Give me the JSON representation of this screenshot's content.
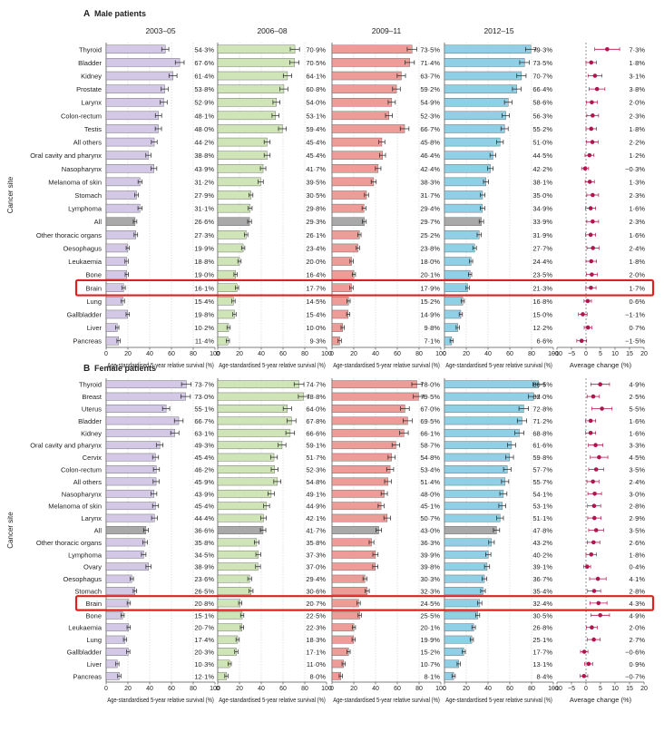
{
  "chart_data": [
    {
      "type": "bar",
      "panel_label": "A",
      "title": "Male patients",
      "ylabel": "Cancer site",
      "periods": [
        "2003–05",
        "2006–08",
        "2009–11",
        "2012–15"
      ],
      "xlabel": "Age-standardised 5-year relative survival (%)",
      "xlim": [
        0,
        100
      ],
      "xticks": [
        "0",
        "20",
        "40",
        "60",
        "80",
        "100"
      ],
      "change_xlabel": "Average change (%)",
      "change_xlim": [
        -10,
        20
      ],
      "change_xticks": [
        "−10",
        "−5",
        "0",
        "5",
        "10",
        "15",
        "20"
      ],
      "highlighted_category": "Brain",
      "categories": [
        "Thyroid",
        "Bladder",
        "Kidney",
        "Prostate",
        "Larynx",
        "Colon-rectum",
        "Testis",
        "All others",
        "Oral cavity and pharynx",
        "Nasopharynx",
        "Melanoma of skin",
        "Stomach",
        "Lymphoma",
        "All",
        "Other thoracic organs",
        "Oesophagus",
        "Leukaemia",
        "Bone",
        "Brain",
        "Lung",
        "Gallbladder",
        "Liver",
        "Pancreas"
      ],
      "series": [
        {
          "values": [
            54.3,
            67.6,
            61.4,
            53.8,
            52.9,
            48.1,
            48.0,
            44.2,
            38.8,
            43.9,
            31.2,
            27.9,
            31.1,
            26.6,
            27.3,
            19.9,
            18.8,
            19.0,
            16.1,
            15.4,
            19.8,
            10.2,
            11.4
          ],
          "labels": [
            "54·3%",
            "67·6%",
            "61·4%",
            "53·8%",
            "52·9%",
            "48·1%",
            "48·0%",
            "44·2%",
            "38·8%",
            "43·9%",
            "31·2%",
            "27·9%",
            "31·1%",
            "26·6%",
            "27·3%",
            "19·9%",
            "18·8%",
            "19·0%",
            "16·1%",
            "15·4%",
            "19·8%",
            "10·2%",
            "11·4%"
          ]
        },
        {
          "values": [
            70.9,
            70.5,
            64.1,
            60.8,
            54.0,
            53.1,
            59.4,
            45.4,
            45.4,
            41.7,
            39.5,
            30.5,
            29.8,
            29.3,
            26.1,
            23.4,
            20.0,
            16.4,
            17.7,
            14.5,
            15.4,
            10.0,
            9.3
          ],
          "labels": [
            "70·9%",
            "70·5%",
            "64·1%",
            "60·8%",
            "54·0%",
            "53·1%",
            "59·4%",
            "45·4%",
            "45·4%",
            "41·7%",
            "39·5%",
            "30·5%",
            "29·8%",
            "29·3%",
            "26·1%",
            "23·4%",
            "20·0%",
            "16·4%",
            "17·7%",
            "14·5%",
            "15·4%",
            "10·0%",
            "9·3%"
          ]
        },
        {
          "values": [
            73.5,
            71.4,
            63.7,
            59.2,
            54.9,
            52.3,
            66.7,
            45.8,
            46.4,
            42.4,
            38.3,
            31.7,
            29.4,
            29.7,
            25.2,
            23.8,
            18.0,
            20.1,
            17.9,
            15.2,
            14.9,
            9.8,
            7.1
          ],
          "labels": [
            "73·5%",
            "71·4%",
            "63·7%",
            "59·2%",
            "54·9%",
            "52·3%",
            "66·7%",
            "45·8%",
            "46·4%",
            "42·4%",
            "38·3%",
            "31·7%",
            "29·4%",
            "29·7%",
            "25·2%",
            "23·8%",
            "18·0%",
            "20·1%",
            "17·9%",
            "15·2%",
            "14·9%",
            "9·8%",
            "7·1%"
          ]
        },
        {
          "values": [
            79.3,
            73.5,
            70.7,
            66.4,
            58.6,
            56.3,
            55.2,
            51.0,
            44.5,
            42.2,
            38.1,
            35.0,
            34.9,
            33.9,
            31.9,
            27.7,
            24.4,
            23.5,
            21.3,
            16.8,
            15.0,
            12.2,
            6.6
          ],
          "labels": [
            "79·3%",
            "73·5%",
            "70·7%",
            "66·4%",
            "58·6%",
            "56·3%",
            "55·2%",
            "51·0%",
            "44·5%",
            "42·2%",
            "38·1%",
            "35·0%",
            "34·9%",
            "33·9%",
            "31·9%",
            "27·7%",
            "24·4%",
            "23·5%",
            "21·3%",
            "16·8%",
            "15·0%",
            "12·2%",
            "6·6%"
          ]
        }
      ],
      "change": {
        "values": [
          7.3,
          1.8,
          3.1,
          3.8,
          2.0,
          2.3,
          1.8,
          2.2,
          1.2,
          -0.3,
          1.3,
          2.3,
          1.6,
          2.3,
          1.6,
          2.4,
          1.8,
          2.0,
          1.7,
          0.6,
          -1.1,
          0.7,
          -1.5
        ],
        "labels": [
          "7·3%",
          "1·8%",
          "3·1%",
          "3·8%",
          "2·0%",
          "2·3%",
          "1·8%",
          "2·2%",
          "1·2%",
          "−0·3%",
          "1·3%",
          "2·3%",
          "1·6%",
          "2·3%",
          "1·6%",
          "2·4%",
          "1·8%",
          "2·0%",
          "1·7%",
          "0·6%",
          "−1·1%",
          "0·7%",
          "−1·5%"
        ]
      }
    },
    {
      "type": "bar",
      "panel_label": "B",
      "title": "Female patients",
      "ylabel": "Cancer site",
      "periods": [
        "2003–05",
        "2006–08",
        "2009–11",
        "2012–15"
      ],
      "xlabel": "Age-standardised 5-year relative survival (%)",
      "xlim": [
        0,
        100
      ],
      "xticks": [
        "0",
        "20",
        "40",
        "60",
        "80",
        "100"
      ],
      "change_xlabel": "Average change (%)",
      "change_xlim": [
        -10,
        20
      ],
      "change_xticks": [
        "−10",
        "−5",
        "0",
        "5",
        "10",
        "15",
        "20"
      ],
      "highlighted_category": "Brain",
      "categories": [
        "Thyroid",
        "Breast",
        "Uterus",
        "Bladder",
        "Kidney",
        "Oral cavity and pharynx",
        "Cervix",
        "Colon-rectum",
        "All others",
        "Nasopharynx",
        "Melanoma of skin",
        "Larynx",
        "All",
        "Other thoracic organs",
        "Lymphoma",
        "Ovary",
        "Oesophagus",
        "Stomach",
        "Brain",
        "Bone",
        "Leukaemia",
        "Lung",
        "Gallbladder",
        "Liver",
        "Pancreas"
      ],
      "series": [
        {
          "values": [
            73.7,
            73.0,
            55.1,
            66.7,
            63.1,
            49.3,
            45.4,
            46.2,
            45.9,
            43.9,
            45.4,
            44.4,
            36.6,
            35.8,
            34.5,
            38.9,
            23.6,
            26.5,
            20.8,
            15.1,
            20.7,
            17.4,
            20.3,
            10.3,
            12.1
          ],
          "labels": [
            "73·7%",
            "73·0%",
            "55·1%",
            "66·7%",
            "63·1%",
            "49·3%",
            "45·4%",
            "46·2%",
            "45·9%",
            "43·9%",
            "45·4%",
            "44·4%",
            "36·6%",
            "35·8%",
            "34·5%",
            "38·9%",
            "23·6%",
            "26·5%",
            "20·8%",
            "15·1%",
            "20·7%",
            "17·4%",
            "20·3%",
            "10·3%",
            "12·1%"
          ]
        },
        {
          "values": [
            74.7,
            78.8,
            64.0,
            67.8,
            66.6,
            59.1,
            51.7,
            52.3,
            54.8,
            49.1,
            44.9,
            42.1,
            41.7,
            35.8,
            37.3,
            37.0,
            29.4,
            30.6,
            20.7,
            22.5,
            22.3,
            18.3,
            17.1,
            11.0,
            8.0
          ],
          "labels": [
            "74·7%",
            "78·8%",
            "64·0%",
            "67·8%",
            "66·6%",
            "59·1%",
            "51·7%",
            "52·3%",
            "54·8%",
            "49·1%",
            "44·9%",
            "42·1%",
            "41·7%",
            "35·8%",
            "37·3%",
            "37·0%",
            "29·4%",
            "30·6%",
            "20·7%",
            "22·5%",
            "22·3%",
            "18·3%",
            "17·1%",
            "11·0%",
            "8·0%"
          ]
        },
        {
          "values": [
            78.0,
            79.5,
            67.0,
            69.5,
            66.1,
            58.7,
            54.8,
            53.4,
            51.4,
            48.0,
            45.1,
            50.7,
            43.0,
            36.3,
            39.9,
            39.8,
            30.3,
            32.3,
            24.5,
            25.5,
            20.1,
            19.9,
            15.2,
            10.7,
            8.1
          ],
          "labels": [
            "78·0%",
            "79·5%",
            "67·0%",
            "69·5%",
            "66·1%",
            "58·7%",
            "54·8%",
            "53·4%",
            "51·4%",
            "48·0%",
            "45·1%",
            "50·7%",
            "43·0%",
            "36·3%",
            "39·9%",
            "39·8%",
            "30·3%",
            "32·3%",
            "24·5%",
            "25·5%",
            "20·1%",
            "19·9%",
            "15·2%",
            "10·7%",
            "8·1%"
          ]
        },
        {
          "values": [
            86.5,
            82.0,
            72.8,
            71.2,
            68.8,
            61.6,
            59.8,
            57.7,
            55.7,
            54.1,
            53.1,
            51.1,
            47.8,
            43.2,
            40.2,
            39.1,
            36.7,
            35.4,
            32.4,
            30.5,
            26.8,
            25.1,
            17.7,
            13.1,
            8.4
          ],
          "labels": [
            "86·5%",
            "82·0%",
            "72·8%",
            "71·2%",
            "68·8%",
            "61·6%",
            "59·8%",
            "57·7%",
            "55·7%",
            "54·1%",
            "53·1%",
            "51·1%",
            "47·8%",
            "43·2%",
            "40·2%",
            "39·1%",
            "36·7%",
            "35·4%",
            "32·4%",
            "30·5%",
            "26·8%",
            "25·1%",
            "17·7%",
            "13·1%",
            "8·4%"
          ]
        }
      ],
      "change": {
        "values": [
          4.9,
          2.5,
          5.5,
          1.6,
          1.6,
          3.3,
          4.5,
          3.5,
          2.4,
          3.0,
          2.8,
          2.9,
          3.5,
          2.6,
          1.8,
          0.4,
          4.1,
          2.8,
          4.3,
          4.9,
          2.0,
          2.7,
          -0.6,
          0.9,
          -0.7
        ],
        "labels": [
          "4·9%",
          "2·5%",
          "5·5%",
          "1·6%",
          "1·6%",
          "3·3%",
          "4·5%",
          "3·5%",
          "2·4%",
          "3·0%",
          "2·8%",
          "2·9%",
          "3·5%",
          "2·6%",
          "1·8%",
          "0·4%",
          "4·1%",
          "2·8%",
          "4·3%",
          "4·9%",
          "2·0%",
          "2·7%",
          "−0·6%",
          "0·9%",
          "−0·7%"
        ]
      }
    }
  ],
  "colors": {
    "periods": [
      "#d3c8e6",
      "#cfe5b8",
      "#ee9c98",
      "#8fd0e6"
    ],
    "all_bar": "#a9a9a9",
    "point": "#b0154f",
    "highlight": "#e02020",
    "text": "#222222",
    "axis": "#555555"
  }
}
